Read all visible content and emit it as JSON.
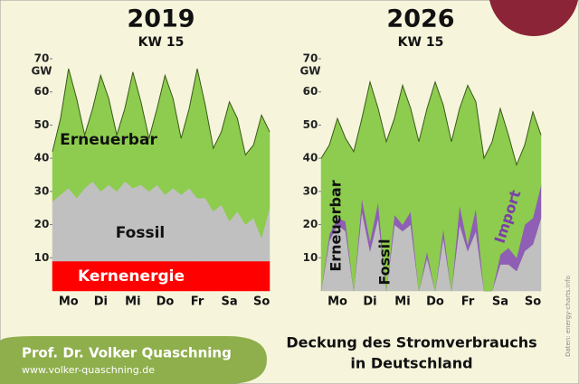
{
  "chart_data": [
    {
      "type": "area",
      "title": "2019",
      "subtitle": "KW 15",
      "y_label": "GW",
      "categories": [
        null,
        null,
        "Mo",
        null,
        null,
        null,
        "Di",
        null,
        null,
        null,
        "Mi",
        null,
        null,
        null,
        "Do",
        null,
        null,
        null,
        "Fr",
        null,
        null,
        null,
        "Sa",
        null,
        null,
        null,
        "So",
        null
      ],
      "ylim": [
        0,
        70
      ],
      "yticks": [
        10,
        20,
        30,
        40,
        50,
        60,
        70
      ],
      "series": [
        {
          "name": "Kernenergie",
          "color": "#ff0000",
          "values": [
            9,
            9,
            9,
            9,
            9,
            9,
            9,
            9,
            9,
            9,
            9,
            9,
            9,
            9,
            9,
            9,
            9,
            9,
            9,
            9,
            9,
            9,
            9,
            9,
            9,
            9,
            9,
            9
          ]
        },
        {
          "name": "Fossil",
          "color": "#c0c0c0",
          "values": [
            18,
            20,
            22,
            19,
            22,
            24,
            21,
            23,
            21,
            24,
            22,
            23,
            21,
            23,
            20,
            22,
            20,
            22,
            19,
            19,
            15,
            17,
            12,
            15,
            11,
            13,
            7,
            16
          ]
        },
        {
          "name": "Erneuerbar",
          "color": "#8dcc4e",
          "values": [
            15,
            23,
            36,
            30,
            16,
            22,
            35,
            26,
            17,
            22,
            35,
            25,
            16,
            23,
            36,
            27,
            17,
            24,
            39,
            28,
            19,
            22,
            36,
            28,
            21,
            22,
            37,
            23
          ]
        }
      ]
    },
    {
      "type": "area",
      "title": "2026",
      "subtitle": "KW 15",
      "y_label": "GW",
      "categories": [
        null,
        null,
        "Mo",
        null,
        null,
        null,
        "Di",
        null,
        null,
        null,
        "Mi",
        null,
        null,
        null,
        "Do",
        null,
        null,
        null,
        "Fr",
        null,
        null,
        null,
        "Sa",
        null,
        null,
        null,
        "So",
        null
      ],
      "ylim": [
        0,
        70
      ],
      "yticks": [
        10,
        20,
        30,
        40,
        50,
        60,
        70
      ],
      "series": [
        {
          "name": "Fossil",
          "color": "#c0c0c0",
          "values": [
            0,
            15,
            20,
            18,
            0,
            24,
            12,
            22,
            0,
            20,
            18,
            20,
            0,
            10,
            0,
            16,
            0,
            20,
            12,
            18,
            0,
            0,
            8,
            8,
            6,
            12,
            14,
            22
          ]
        },
        {
          "name": "Import",
          "color": "#8e5fb4",
          "values": [
            0,
            2,
            2,
            3,
            0,
            4,
            3,
            5,
            0,
            3,
            2,
            4,
            0,
            2,
            0,
            3,
            0,
            6,
            2,
            7,
            0,
            0,
            3,
            5,
            4,
            8,
            8,
            10
          ]
        },
        {
          "name": "Erneuerbar",
          "color": "#8dcc4e",
          "values": [
            40,
            27,
            30,
            25,
            42,
            24,
            48,
            28,
            45,
            29,
            42,
            31,
            45,
            43,
            63,
            37,
            45,
            29,
            48,
            32,
            40,
            45,
            44,
            34,
            28,
            24,
            32,
            15
          ]
        }
      ]
    }
  ],
  "footer": {
    "author": "Prof. Dr. Volker Quaschning",
    "url": "www.volker-quaschning.de",
    "caption_line1": "Deckung des Stromverbrauchs",
    "caption_line2": "in Deutschland",
    "source": "Daten: energy-charts.info"
  }
}
